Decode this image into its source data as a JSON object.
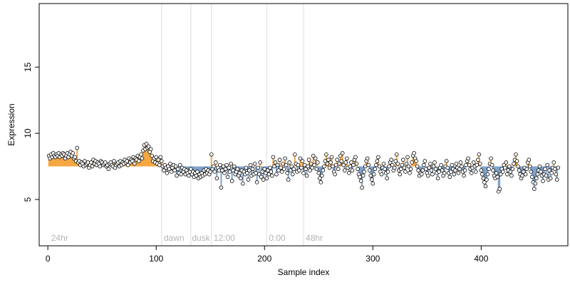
{
  "chart_data": {
    "type": "scatter",
    "title": "",
    "xlabel": "Sample index",
    "ylabel": "Expression",
    "xlim": [
      -8,
      480
    ],
    "ylim": [
      1.5,
      19.8
    ],
    "xticks": [
      0,
      100,
      200,
      300,
      400
    ],
    "yticks": [
      5,
      10,
      15
    ],
    "grid": false,
    "legend": "none",
    "reference_level": 7.5,
    "colors": {
      "above": "#f5a742",
      "below": "#7fa3cc",
      "point_fill": "#ffffff",
      "point_stroke": "#000000",
      "separator": "#dcdcdc",
      "annotation": "#b3b3b3"
    },
    "annotations": [
      {
        "x": 3,
        "label": "24hr"
      },
      {
        "x": 107,
        "label": "dawn"
      },
      {
        "x": 133,
        "label": "dusk"
      },
      {
        "x": 153,
        "label": "12:00"
      },
      {
        "x": 204,
        "label": "0:00"
      },
      {
        "x": 238,
        "label": "48hr"
      }
    ],
    "separators": [
      105,
      132,
      151,
      202,
      236
    ],
    "series": [
      {
        "x_start": 1,
        "values": [
          8.3,
          8.1,
          8.4,
          8.2,
          8.5,
          8.3,
          8.2,
          8.4,
          8.3,
          8.5,
          8.2,
          8.4,
          8.3,
          8.5,
          8.4,
          8.1,
          8.3,
          8.5,
          8.2,
          8.4,
          8.6,
          8.3,
          8.5,
          8.1,
          8.2,
          7.9,
          8.9,
          7.8,
          7.9,
          7.6,
          7.8,
          7.7,
          7.5,
          7.9,
          7.6,
          7.7,
          7.8,
          7.4,
          7.6,
          7.8,
          7.5,
          8.0,
          7.7,
          7.9,
          7.6,
          7.8,
          7.7,
          7.5,
          7.9,
          7.8,
          7.6,
          7.7,
          7.8,
          7.5,
          7.6,
          7.3,
          7.7,
          7.8,
          7.6,
          7.5,
          7.9,
          7.4,
          7.6,
          7.7,
          7.8,
          7.5,
          7.9,
          7.6,
          7.8,
          7.7,
          8.0,
          7.8,
          7.9,
          7.6,
          8.1,
          7.8,
          8.0,
          7.9,
          8.2,
          7.7,
          8.1,
          8.0,
          8.3,
          7.9,
          8.2,
          8.4,
          8.1,
          8.7,
          9.1,
          8.8,
          9.2,
          8.9,
          9.0,
          8.6,
          8.8,
          8.3,
          7.9,
          8.1,
          7.8,
          8.2,
          7.7,
          8.0,
          7.6,
          8.2,
          7.9,
          7.5,
          7.2,
          7.6,
          7.4,
          7.0,
          7.5,
          7.3,
          7.7,
          7.1,
          7.4,
          7.6,
          7.2,
          7.5,
          6.8,
          7.3,
          7.0,
          7.6,
          6.9,
          7.4,
          7.1,
          7.3,
          6.9,
          7.2,
          7.0,
          6.8,
          7.1,
          7.3,
          6.9,
          7.1,
          6.7,
          7.0,
          6.8,
          7.1,
          6.6,
          6.9,
          6.7,
          7.0,
          6.8,
          7.2,
          6.9,
          7.3,
          7.0,
          7.2,
          6.9,
          7.1,
          8.4,
          7.3,
          7.5,
          7.1,
          7.8,
          6.6,
          7.4,
          7.2,
          7.6,
          5.9,
          7.2,
          7.5,
          7.0,
          7.3,
          7.6,
          6.7,
          7.4,
          7.1,
          7.7,
          6.4,
          7.2,
          7.5,
          6.9,
          7.1,
          7.3,
          6.8,
          7.0,
          6.6,
          7.2,
          6.2,
          7.1,
          6.9,
          7.4,
          7.0,
          6.5,
          7.2,
          7.6,
          6.8,
          7.3,
          6.9,
          7.7,
          7.0,
          6.3,
          7.4,
          6.9,
          7.8,
          6.7,
          7.1,
          6.5,
          7.3,
          7.0,
          6.6,
          7.2,
          6.9,
          7.4,
          7.1,
          6.8,
          8.2,
          7.5,
          7.8,
          6.9,
          7.6,
          7.2,
          8.0,
          7.4,
          7.1,
          7.7,
          7.3,
          8.1,
          7.6,
          7.0,
          6.5,
          7.8,
          7.2,
          7.5,
          6.9,
          7.3,
          8.4,
          7.7,
          7.1,
          7.6,
          7.2,
          8.1,
          7.4,
          7.9,
          7.0,
          7.6,
          7.3,
          6.8,
          7.5,
          8.0,
          7.2,
          7.7,
          7.4,
          8.3,
          7.6,
          8.1,
          7.3,
          7.8,
          7.0,
          6.6,
          6.3,
          6.8,
          7.2,
          7.5,
          7.9,
          8.4,
          7.7,
          8.0,
          7.4,
          7.8,
          8.2,
          7.5,
          7.1,
          6.9,
          7.6,
          8.0,
          7.3,
          7.7,
          8.3,
          7.9,
          8.5,
          7.6,
          7.2,
          7.8,
          8.1,
          7.4,
          7.0,
          7.5,
          7.8,
          7.2,
          7.6,
          8.0,
          8.2,
          7.7,
          7.3,
          6.9,
          6.7,
          6.4,
          5.9,
          6.8,
          7.1,
          7.5,
          7.9,
          8.1,
          7.6,
          7.2,
          6.8,
          6.5,
          6.2,
          6.9,
          7.3,
          7.6,
          7.9,
          8.2,
          7.5,
          7.1,
          6.9,
          7.4,
          7.7,
          7.3,
          7.0,
          6.6,
          7.1,
          7.5,
          7.8,
          8.0,
          7.6,
          7.2,
          7.4,
          7.9,
          8.4,
          7.7,
          7.2,
          6.9,
          7.3,
          7.6,
          8.0,
          7.4,
          7.1,
          7.7,
          8.2,
          7.5,
          7.0,
          7.3,
          7.8,
          8.3,
          8.5,
          8.1,
          7.9,
          7.5,
          7.2,
          6.8,
          7.0,
          6.9,
          7.2,
          7.6,
          7.9,
          7.3,
          7.0,
          6.8,
          7.4,
          7.7,
          7.2,
          6.9,
          7.5,
          7.8,
          7.3,
          7.0,
          6.6,
          7.1,
          7.4,
          7.6,
          7.2,
          6.8,
          7.0,
          7.5,
          7.9,
          7.4,
          7.0,
          6.7,
          7.1,
          7.6,
          7.3,
          6.9,
          7.2,
          7.7,
          7.4,
          7.0,
          7.3,
          7.8,
          7.5,
          7.1,
          6.8,
          7.2,
          7.6,
          7.9,
          8.1,
          7.6,
          7.3,
          7.0,
          7.4,
          7.8,
          7.5,
          7.1,
          7.6,
          8.0,
          8.4,
          7.7,
          7.2,
          6.9,
          6.6,
          6.3,
          6.0,
          6.5,
          6.9,
          7.3,
          7.7,
          8.1,
          7.6,
          7.2,
          6.8,
          6.6,
          7.0,
          6.7,
          5.6,
          5.8,
          6.9,
          7.3,
          7.1,
          7.6,
          7.4,
          7.8,
          6.9,
          7.2,
          7.5,
          7.1,
          6.8,
          7.3,
          7.7,
          8.0,
          8.4,
          7.9,
          7.5,
          7.2,
          6.9,
          6.6,
          6.8,
          7.1,
          7.4,
          6.9,
          7.3,
          7.8,
          8.0,
          7.5,
          7.1,
          6.7,
          6.3,
          5.8,
          6.2,
          6.6,
          6.9,
          7.2,
          7.5,
          7.1,
          6.8,
          6.4,
          6.9,
          7.3,
          6.8,
          7.6,
          6.5,
          7.2,
          6.6,
          7.0,
          7.4,
          7.8,
          7.3,
          6.9,
          6.5,
          7.4
        ]
      }
    ]
  }
}
